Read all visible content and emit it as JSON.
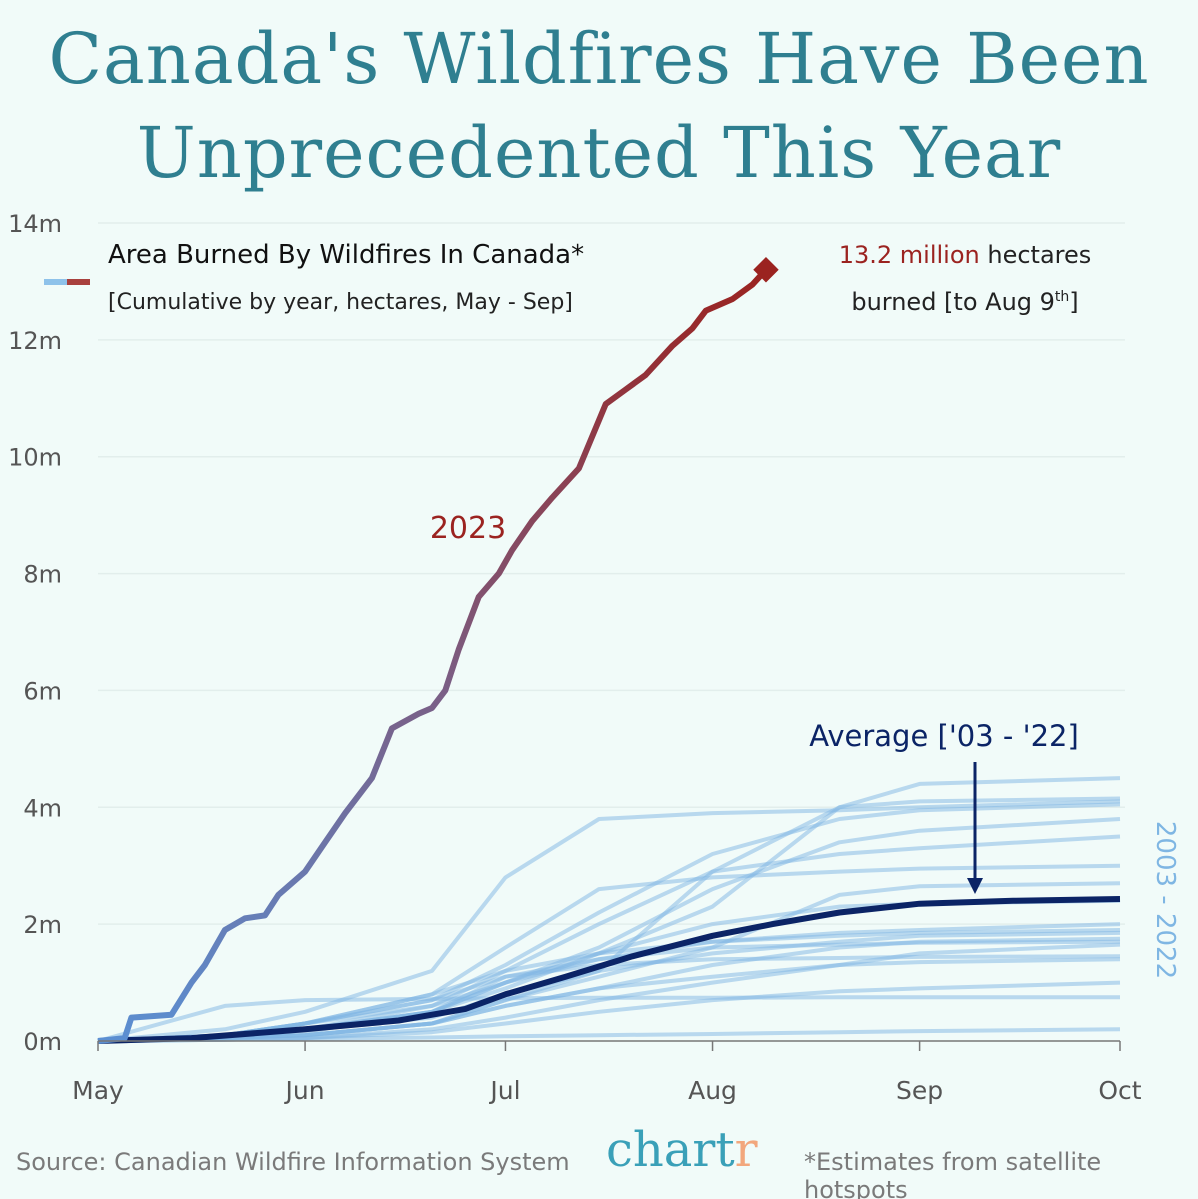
{
  "title_line1": "Canada's Wildfires Have Been",
  "title_line2": "Unprecedented This Year",
  "legend": {
    "title": "Area Burned By Wildfires In Canada*",
    "subtitle": "[Cumulative by year, hectares, May - Sep]"
  },
  "note": {
    "highlight": "13.2 million",
    "rest1": " hectares",
    "line2": "burned [to Aug 9",
    "sup": "th",
    "close": "]"
  },
  "footer": {
    "source": "Source: Canadian Wildfire Information System",
    "logo": "chartr",
    "footnote": "*Estimates from satellite hotspots"
  },
  "chart_data": {
    "type": "line",
    "ylim": [
      0,
      14
    ],
    "yticks": [
      0,
      2,
      4,
      6,
      8,
      10,
      12,
      14
    ],
    "ytick_labels": [
      "0m",
      "2m",
      "4m",
      "6m",
      "8m",
      "10m",
      "12m",
      "14m"
    ],
    "xticks": [
      "05-01",
      "06-01",
      "07-01",
      "08-01",
      "09-01",
      "10-01"
    ],
    "xtick_labels": [
      "May",
      "Jun",
      "Jul",
      "Aug",
      "Sep",
      "Oct"
    ],
    "unit": "million hectares",
    "colors": {
      "y2023_start": "#5b8fd2",
      "y2023_end": "#9b2320",
      "average": "#0b2466",
      "history": "#7fb6e3"
    },
    "labels": {
      "y2023": "2023",
      "average": "Average ['03 - '22]",
      "history": "2003 - 2022"
    },
    "series_2023": {
      "x": [
        "05-01",
        "05-05",
        "05-06",
        "05-12",
        "05-15",
        "05-17",
        "05-20",
        "05-23",
        "05-26",
        "05-28",
        "06-01",
        "06-04",
        "06-07",
        "06-11",
        "06-14",
        "06-18",
        "06-20",
        "06-22",
        "06-24",
        "06-27",
        "06-30",
        "07-02",
        "07-05",
        "07-08",
        "07-12",
        "07-16",
        "07-19",
        "07-22",
        "07-26",
        "07-29",
        "07-31",
        "08-04",
        "08-07",
        "08-09"
      ],
      "y": [
        0,
        0.05,
        0.4,
        0.45,
        1.0,
        1.3,
        1.9,
        2.1,
        2.15,
        2.5,
        2.9,
        3.4,
        3.9,
        4.5,
        5.35,
        5.6,
        5.7,
        6.0,
        6.7,
        7.6,
        8.0,
        8.4,
        8.9,
        9.3,
        9.8,
        10.9,
        11.15,
        11.4,
        11.9,
        12.2,
        12.5,
        12.7,
        12.95,
        13.2
      ]
    },
    "average": {
      "x": [
        "05-01",
        "05-15",
        "06-01",
        "06-15",
        "06-25",
        "07-01",
        "07-10",
        "07-20",
        "08-01",
        "08-10",
        "08-20",
        "09-01",
        "09-15",
        "10-01"
      ],
      "y": [
        0,
        0.05,
        0.2,
        0.35,
        0.55,
        0.8,
        1.1,
        1.45,
        1.8,
        2.0,
        2.2,
        2.35,
        2.4,
        2.43
      ]
    },
    "history": {
      "x": [
        "05-01",
        "05-20",
        "06-01",
        "06-20",
        "07-01",
        "07-15",
        "08-01",
        "08-20",
        "09-01",
        "10-01"
      ],
      "series": [
        [
          0,
          0.1,
          0.2,
          0.5,
          0.9,
          1.5,
          2.3,
          4.0,
          4.4,
          4.5
        ],
        [
          0,
          0.05,
          0.1,
          0.3,
          0.7,
          1.2,
          2.9,
          4.0,
          4.1,
          4.15
        ],
        [
          0,
          0.2,
          0.5,
          1.2,
          2.8,
          3.8,
          3.9,
          3.95,
          4.0,
          4.1
        ],
        [
          0,
          0.1,
          0.3,
          0.7,
          1.3,
          2.2,
          3.2,
          3.8,
          3.95,
          4.05
        ],
        [
          0,
          0.05,
          0.2,
          0.5,
          1.0,
          1.6,
          2.6,
          3.4,
          3.6,
          3.8
        ],
        [
          0,
          0.1,
          0.2,
          0.6,
          1.2,
          2.0,
          2.9,
          3.2,
          3.3,
          3.5
        ],
        [
          0,
          0.1,
          0.3,
          0.8,
          1.6,
          2.6,
          2.8,
          2.9,
          2.95,
          3.0
        ],
        [
          0,
          0.05,
          0.1,
          0.3,
          0.7,
          1.1,
          1.6,
          2.5,
          2.65,
          2.7
        ],
        [
          0,
          0.05,
          0.2,
          0.5,
          1.0,
          1.4,
          1.7,
          1.85,
          1.9,
          2.0
        ],
        [
          0,
          0.1,
          0.3,
          0.8,
          1.2,
          1.5,
          1.7,
          1.8,
          1.85,
          1.9
        ],
        [
          0,
          0.1,
          0.2,
          0.4,
          0.8,
          1.2,
          1.5,
          1.7,
          1.8,
          1.85
        ],
        [
          0,
          0.05,
          0.1,
          0.3,
          0.6,
          0.9,
          1.3,
          1.6,
          1.7,
          1.75
        ],
        [
          0,
          0.05,
          0.15,
          0.5,
          1.1,
          1.4,
          1.6,
          1.65,
          1.68,
          1.7
        ],
        [
          0,
          0.02,
          0.05,
          0.2,
          0.4,
          0.7,
          1.0,
          1.3,
          1.5,
          1.65
        ],
        [
          0,
          0.1,
          0.3,
          0.7,
          1.1,
          1.3,
          1.4,
          1.42,
          1.44,
          1.45
        ],
        [
          0,
          0.05,
          0.1,
          0.3,
          0.6,
          0.9,
          1.1,
          1.3,
          1.35,
          1.4
        ],
        [
          0,
          0.02,
          0.05,
          0.15,
          0.3,
          0.5,
          0.7,
          0.85,
          0.9,
          1.0
        ],
        [
          0,
          0.6,
          0.7,
          0.72,
          0.73,
          0.74,
          0.74,
          0.75,
          0.75,
          0.75
        ],
        [
          0,
          0.02,
          0.04,
          0.06,
          0.08,
          0.1,
          0.12,
          0.15,
          0.17,
          0.2
        ],
        [
          0,
          0.1,
          0.3,
          0.6,
          1.0,
          1.5,
          2.0,
          2.3,
          2.35,
          2.4
        ]
      ]
    }
  }
}
